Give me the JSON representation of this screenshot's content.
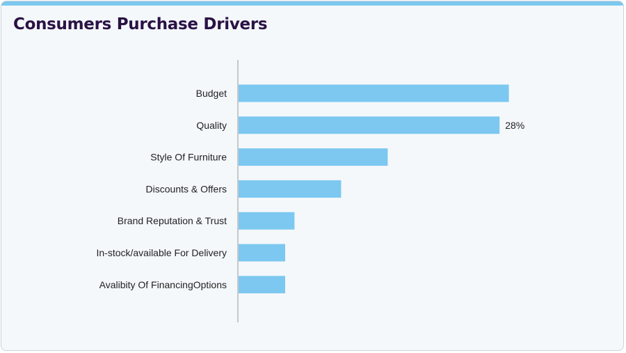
{
  "colors": {
    "bar": "#7cc8f0",
    "accent_bar": "#7cc8ef",
    "title": "#2a1245",
    "axis": "#999999"
  },
  "chart_data": {
    "type": "bar",
    "orientation": "horizontal",
    "title": "Consumers Purchase Drivers",
    "categories": [
      "Budget",
      "Quality",
      "Style Of Furniture",
      "Discounts & Offers",
      "Brand Reputation & Trust",
      "In-stock/available For Delivery",
      "Avalibity Of FinancingOptions"
    ],
    "values": [
      29,
      28,
      16,
      11,
      6,
      5,
      5
    ],
    "data_labels": [
      null,
      "28%",
      null,
      null,
      null,
      null,
      null
    ],
    "xlim": [
      0,
      30
    ],
    "xlabel": "",
    "ylabel": "",
    "grid": false,
    "unit": "%"
  }
}
